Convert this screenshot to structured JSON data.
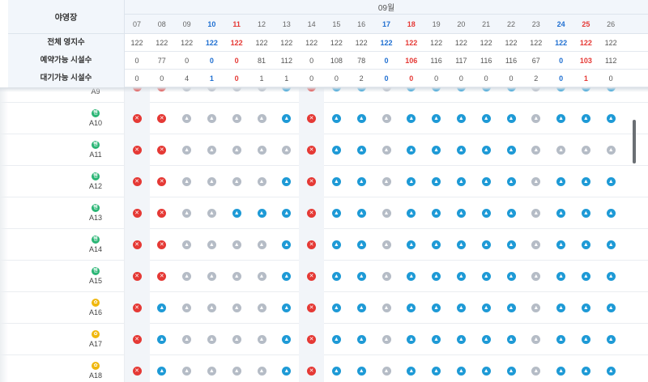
{
  "header": {
    "campground_label": "야영장",
    "month": "09월",
    "days": [
      "07",
      "08",
      "09",
      "10",
      "11",
      "12",
      "13",
      "14",
      "15",
      "16",
      "17",
      "18",
      "19",
      "20",
      "21",
      "22",
      "23",
      "24",
      "25",
      "26"
    ],
    "day_colors": [
      "n",
      "n",
      "n",
      "b",
      "r",
      "n",
      "n",
      "n",
      "n",
      "n",
      "b",
      "r",
      "n",
      "n",
      "n",
      "n",
      "n",
      "b",
      "r",
      "n"
    ]
  },
  "summary": [
    {
      "label": "전체 영지수",
      "values": [
        "122",
        "122",
        "122",
        "122",
        "122",
        "122",
        "122",
        "122",
        "122",
        "122",
        "122",
        "122",
        "122",
        "122",
        "122",
        "122",
        "122",
        "122",
        "122",
        "122"
      ]
    },
    {
      "label": "예약가능 시설수",
      "values": [
        "0",
        "77",
        "0",
        "0",
        "0",
        "81",
        "112",
        "0",
        "108",
        "78",
        "0",
        "106",
        "116",
        "117",
        "116",
        "116",
        "67",
        "0",
        "103",
        "112"
      ]
    },
    {
      "label": "대기가능 시설수",
      "values": [
        "0",
        "0",
        "4",
        "1",
        "0",
        "1",
        "1",
        "0",
        "0",
        "2",
        "0",
        "0",
        "0",
        "0",
        "0",
        "0",
        "2",
        "0",
        "1",
        "0"
      ]
    }
  ],
  "rows": [
    {
      "name": "A9",
      "badge": "g",
      "badge_text": "텐",
      "cells": "xxggggaxaagaaaaagaaa"
    },
    {
      "name": "A10",
      "badge": "g",
      "badge_text": "텐",
      "cells": "xxggggaxaagaaaaagaaa"
    },
    {
      "name": "A11",
      "badge": "g",
      "badge_text": "텐",
      "cells": "xxgggggxaagaaaaagggg"
    },
    {
      "name": "A12",
      "badge": "g",
      "badge_text": "텐",
      "cells": "xxggggaxaagaaaaagaaa"
    },
    {
      "name": "A13",
      "badge": "g",
      "badge_text": "텐",
      "cells": "xxggaaaxaagaaaaagaaa"
    },
    {
      "name": "A14",
      "badge": "g",
      "badge_text": "텐",
      "cells": "xxggggaxaagaaaaagaaa"
    },
    {
      "name": "A15",
      "badge": "g",
      "badge_text": "텐",
      "cells": "xxggggaxaagaaaaagaaa"
    },
    {
      "name": "A16",
      "badge": "y",
      "badge_text": "✿",
      "cells": "xaggggaxaagaaaaagaaa"
    },
    {
      "name": "A17",
      "badge": "y",
      "badge_text": "✿",
      "cells": "xaggggaxaagaaaaagaaa"
    },
    {
      "name": "A18",
      "badge": "y",
      "badge_text": "✿",
      "cells": "xaggggaxaagaaaaagaaa"
    }
  ],
  "icons": {
    "x": "unavailable-icon",
    "a": "available-icon",
    "g": "waitlist-icon"
  },
  "icon_glyphs": {
    "x": "✕",
    "a": "▲",
    "g": "▲"
  }
}
